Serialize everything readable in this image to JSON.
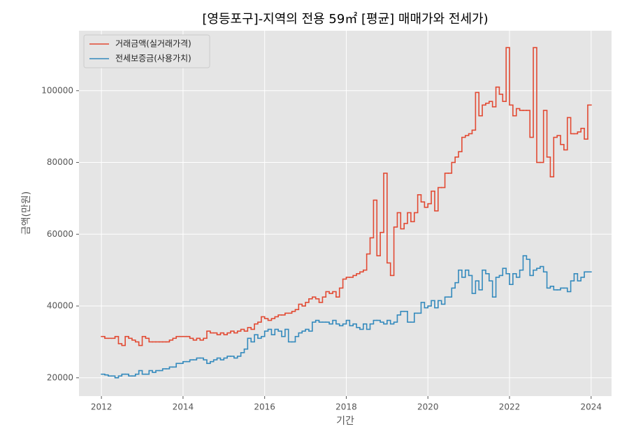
{
  "chart_data": {
    "type": "step",
    "title": "[영등포구]-지역의 전용 59㎡ [평균] 매매가와 전세가)",
    "x_label": "기간",
    "y_label": "금액(만원)",
    "x": [
      2012,
      2012.083,
      2012.167,
      2012.25,
      2012.333,
      2012.417,
      2012.5,
      2012.583,
      2012.667,
      2012.75,
      2012.833,
      2012.917,
      2013,
      2013.083,
      2013.167,
      2013.25,
      2013.333,
      2013.417,
      2013.5,
      2013.583,
      2013.667,
      2013.75,
      2013.833,
      2013.917,
      2014,
      2014.083,
      2014.167,
      2014.25,
      2014.333,
      2014.417,
      2014.5,
      2014.583,
      2014.667,
      2014.75,
      2014.833,
      2014.917,
      2015,
      2015.083,
      2015.167,
      2015.25,
      2015.333,
      2015.417,
      2015.5,
      2015.583,
      2015.667,
      2015.75,
      2015.833,
      2015.917,
      2016,
      2016.083,
      2016.167,
      2016.25,
      2016.333,
      2016.417,
      2016.5,
      2016.583,
      2016.667,
      2016.75,
      2016.833,
      2016.917,
      2017,
      2017.083,
      2017.167,
      2017.25,
      2017.333,
      2017.417,
      2017.5,
      2017.583,
      2017.667,
      2017.75,
      2017.833,
      2017.917,
      2018,
      2018.083,
      2018.167,
      2018.25,
      2018.333,
      2018.417,
      2018.5,
      2018.583,
      2018.667,
      2018.75,
      2018.833,
      2018.917,
      2019,
      2019.083,
      2019.167,
      2019.25,
      2019.333,
      2019.417,
      2019.5,
      2019.583,
      2019.667,
      2019.75,
      2019.833,
      2019.917,
      2020,
      2020.083,
      2020.167,
      2020.25,
      2020.333,
      2020.417,
      2020.5,
      2020.583,
      2020.667,
      2020.75,
      2020.833,
      2020.917,
      2021,
      2021.083,
      2021.167,
      2021.25,
      2021.333,
      2021.417,
      2021.5,
      2021.583,
      2021.667,
      2021.75,
      2021.833,
      2021.917,
      2022,
      2022.083,
      2022.167,
      2022.25,
      2022.333,
      2022.417,
      2022.5,
      2022.583,
      2022.667,
      2022.75,
      2022.833,
      2022.917,
      2023,
      2023.083,
      2023.167,
      2023.25,
      2023.333,
      2023.417,
      2023.5,
      2023.583,
      2023.667,
      2023.75,
      2023.833,
      2023.917
    ],
    "series": [
      {
        "name": "거래금액(실거래가격)",
        "color": "#e24a33",
        "values": [
          31500,
          31000,
          31000,
          31000,
          31500,
          29500,
          29000,
          31500,
          31000,
          30500,
          30000,
          29000,
          31500,
          31000,
          30000,
          30000,
          30000,
          30000,
          30000,
          30000,
          30500,
          31000,
          31500,
          31500,
          31500,
          31500,
          31000,
          30500,
          31000,
          30500,
          31000,
          33000,
          32500,
          32500,
          32000,
          32500,
          32000,
          32500,
          33000,
          32500,
          33000,
          33500,
          33000,
          34000,
          33500,
          35000,
          35500,
          37000,
          36500,
          36000,
          36500,
          37000,
          37500,
          37500,
          38000,
          38000,
          38500,
          39000,
          40500,
          40000,
          41000,
          42000,
          42500,
          42000,
          41000,
          42500,
          44000,
          43500,
          44000,
          42500,
          45000,
          47500,
          48000,
          48000,
          48500,
          49000,
          49500,
          50000,
          54500,
          59000,
          69500,
          54000,
          60500,
          77000,
          52000,
          48500,
          62000,
          66000,
          61500,
          63000,
          66000,
          63500,
          66000,
          71000,
          69000,
          67500,
          68500,
          72000,
          66500,
          73000,
          73000,
          77000,
          77000,
          80000,
          81500,
          83000,
          87000,
          87500,
          88000,
          89000,
          99500,
          93000,
          96000,
          96500,
          97000,
          95500,
          101000,
          99000,
          97000,
          112000,
          96000,
          93000,
          95000,
          94500,
          94500,
          94500,
          87000,
          112000,
          80000,
          80000,
          94500,
          81500,
          76000,
          87000,
          87500,
          85000,
          83500,
          92500,
          88000,
          88000,
          88500,
          89500,
          86500,
          96000
        ]
      },
      {
        "name": "전세보증금(사용가치)",
        "color": "#348abd",
        "values": [
          21000,
          20800,
          20500,
          20500,
          20000,
          20500,
          21000,
          21000,
          20500,
          20500,
          21000,
          22000,
          21000,
          21000,
          22000,
          21500,
          22000,
          22000,
          22500,
          22500,
          23000,
          23000,
          24000,
          24000,
          24500,
          24500,
          25000,
          25000,
          25500,
          25500,
          25000,
          24000,
          24500,
          25000,
          25500,
          25000,
          25500,
          26000,
          26000,
          25500,
          26000,
          27000,
          28000,
          31000,
          30000,
          32000,
          31000,
          31500,
          33000,
          33500,
          32000,
          33500,
          33000,
          31500,
          33500,
          30000,
          30000,
          31500,
          32500,
          33000,
          33500,
          33000,
          35500,
          36000,
          35500,
          35500,
          35500,
          35000,
          36000,
          35000,
          34500,
          35000,
          36000,
          34500,
          35000,
          34000,
          33500,
          35000,
          33500,
          35000,
          36000,
          36000,
          35500,
          35000,
          36000,
          35000,
          35500,
          37500,
          38500,
          38500,
          35500,
          35500,
          38000,
          38000,
          41000,
          39500,
          40000,
          41500,
          39500,
          41500,
          40500,
          42500,
          42500,
          45000,
          46500,
          50000,
          48000,
          50000,
          48500,
          43500,
          47000,
          44500,
          50000,
          49000,
          47000,
          42500,
          48000,
          48500,
          50500,
          49000,
          46000,
          49000,
          48000,
          50000,
          54000,
          53000,
          48500,
          50000,
          50500,
          51000,
          49500,
          45000,
          45500,
          44500,
          44500,
          45000,
          45000,
          44000,
          47000,
          49000,
          47000,
          48000,
          49500,
          49500
        ]
      }
    ],
    "xlim": [
      2011.45,
      2024.5
    ],
    "ylim": [
      14900,
      116700
    ],
    "xticks": [
      2012,
      2014,
      2016,
      2018,
      2020,
      2022,
      2024
    ],
    "yticks": [
      20000,
      40000,
      60000,
      80000,
      100000
    ],
    "grid": true,
    "legend": "upper left"
  }
}
